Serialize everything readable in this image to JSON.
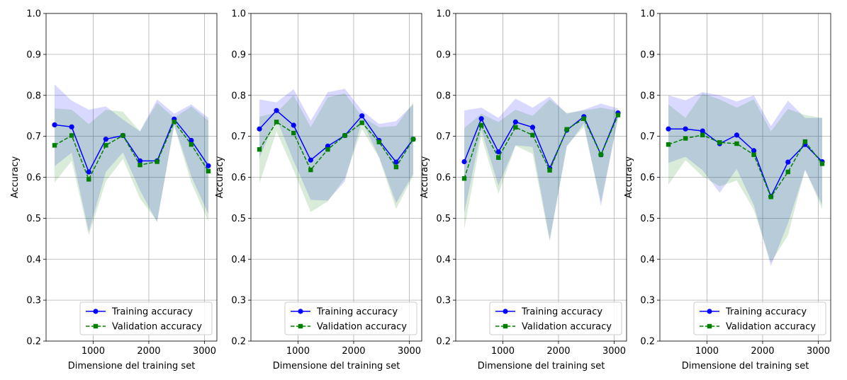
{
  "colors": {
    "train": "#0000ff",
    "val": "#008000",
    "train_band": "#0000ff",
    "val_band": "#008000",
    "grid": "#b0b0b0"
  },
  "chart_data": [
    {
      "type": "line",
      "xlabel": "Dimensione del training set",
      "ylabel": "Accuracy",
      "ylim": [
        0.2,
        1.0
      ],
      "xticks": [
        1000,
        2000,
        3000
      ],
      "yticks": [
        0.2,
        0.3,
        0.4,
        0.5,
        0.6,
        0.7,
        0.8,
        0.9,
        1.0
      ],
      "grid": true,
      "legend": "lower-right",
      "x": [
        307,
        614,
        921,
        1228,
        1535,
        1842,
        2149,
        2456,
        2763,
        3070
      ],
      "series": [
        {
          "name": "Training accuracy",
          "marker": "circle",
          "style": "solid",
          "values": [
            0.728,
            0.723,
            0.613,
            0.693,
            0.702,
            0.64,
            0.64,
            0.742,
            0.69,
            0.628
          ],
          "upper": [
            0.827,
            0.787,
            0.765,
            0.773,
            0.741,
            0.712,
            0.79,
            0.755,
            0.778,
            0.745
          ],
          "lower": [
            0.627,
            0.66,
            0.467,
            0.613,
            0.661,
            0.568,
            0.49,
            0.728,
            0.602,
            0.51
          ]
        },
        {
          "name": "Validation accuracy",
          "marker": "square",
          "style": "dashed",
          "values": [
            0.678,
            0.702,
            0.595,
            0.678,
            0.702,
            0.63,
            0.638,
            0.735,
            0.68,
            0.615
          ],
          "upper": [
            0.768,
            0.765,
            0.73,
            0.765,
            0.76,
            0.712,
            0.782,
            0.745,
            0.773,
            0.738
          ],
          "lower": [
            0.587,
            0.64,
            0.458,
            0.59,
            0.645,
            0.548,
            0.493,
            0.725,
            0.587,
            0.492
          ]
        }
      ]
    },
    {
      "type": "line",
      "xlabel": "Dimensione del training set",
      "ylabel": "Accuracy",
      "ylim": [
        0.2,
        1.0
      ],
      "xticks": [
        1000,
        2000,
        3000
      ],
      "yticks": [
        0.2,
        0.3,
        0.4,
        0.5,
        0.6,
        0.7,
        0.8,
        0.9,
        1.0
      ],
      "grid": true,
      "legend": "lower-right",
      "x": [
        307,
        614,
        921,
        1228,
        1535,
        1842,
        2149,
        2456,
        2763,
        3070
      ],
      "series": [
        {
          "name": "Training accuracy",
          "marker": "circle",
          "style": "solid",
          "values": [
            0.718,
            0.763,
            0.727,
            0.642,
            0.676,
            0.702,
            0.75,
            0.69,
            0.637,
            0.693
          ],
          "upper": [
            0.79,
            0.783,
            0.815,
            0.738,
            0.808,
            0.816,
            0.763,
            0.73,
            0.737,
            0.778
          ],
          "lower": [
            0.648,
            0.743,
            0.64,
            0.545,
            0.543,
            0.59,
            0.738,
            0.65,
            0.537,
            0.608
          ]
        },
        {
          "name": "Validation accuracy",
          "marker": "square",
          "style": "dashed",
          "values": [
            0.668,
            0.735,
            0.708,
            0.618,
            0.668,
            0.702,
            0.733,
            0.686,
            0.625,
            0.693
          ],
          "upper": [
            0.748,
            0.758,
            0.8,
            0.722,
            0.795,
            0.805,
            0.748,
            0.722,
            0.725,
            0.782
          ],
          "lower": [
            0.585,
            0.712,
            0.617,
            0.515,
            0.541,
            0.598,
            0.718,
            0.648,
            0.523,
            0.603
          ]
        }
      ]
    },
    {
      "type": "line",
      "xlabel": "Dimensione del training set",
      "ylabel": "Accuracy",
      "ylim": [
        0.2,
        1.0
      ],
      "xticks": [
        1000,
        2000,
        3000
      ],
      "yticks": [
        0.2,
        0.3,
        0.4,
        0.5,
        0.6,
        0.7,
        0.8,
        0.9,
        1.0
      ],
      "grid": true,
      "legend": "lower-right",
      "x": [
        307,
        614,
        921,
        1228,
        1535,
        1842,
        2149,
        2456,
        2763,
        3070
      ],
      "series": [
        {
          "name": "Training accuracy",
          "marker": "circle",
          "style": "solid",
          "values": [
            0.638,
            0.743,
            0.662,
            0.735,
            0.722,
            0.622,
            0.715,
            0.748,
            0.655,
            0.757
          ],
          "upper": [
            0.763,
            0.77,
            0.745,
            0.792,
            0.77,
            0.797,
            0.755,
            0.765,
            0.78,
            0.768
          ],
          "lower": [
            0.513,
            0.716,
            0.58,
            0.678,
            0.674,
            0.448,
            0.675,
            0.731,
            0.53,
            0.746
          ]
        },
        {
          "name": "Validation accuracy",
          "marker": "square",
          "style": "dashed",
          "values": [
            0.597,
            0.727,
            0.648,
            0.722,
            0.703,
            0.617,
            0.717,
            0.743,
            0.655,
            0.752
          ],
          "upper": [
            0.72,
            0.755,
            0.735,
            0.765,
            0.75,
            0.79,
            0.757,
            0.763,
            0.77,
            0.762
          ],
          "lower": [
            0.473,
            0.7,
            0.56,
            0.677,
            0.657,
            0.443,
            0.677,
            0.723,
            0.54,
            0.742
          ]
        }
      ]
    },
    {
      "type": "line",
      "xlabel": "Dimensione del training set",
      "ylabel": "Accuracy",
      "ylim": [
        0.2,
        1.0
      ],
      "xticks": [
        1000,
        2000,
        3000
      ],
      "yticks": [
        0.2,
        0.3,
        0.4,
        0.5,
        0.6,
        0.7,
        0.8,
        0.9,
        1.0
      ],
      "grid": true,
      "legend": "lower-right",
      "x": [
        307,
        614,
        921,
        1228,
        1535,
        1842,
        2149,
        2456,
        2763,
        3070
      ],
      "series": [
        {
          "name": "Training accuracy",
          "marker": "circle",
          "style": "solid",
          "values": [
            0.718,
            0.718,
            0.713,
            0.682,
            0.703,
            0.665,
            0.553,
            0.637,
            0.68,
            0.638
          ],
          "upper": [
            0.8,
            0.788,
            0.808,
            0.8,
            0.785,
            0.8,
            0.725,
            0.787,
            0.745,
            0.745
          ],
          "lower": [
            0.635,
            0.65,
            0.617,
            0.562,
            0.62,
            0.532,
            0.383,
            0.488,
            0.617,
            0.533
          ]
        },
        {
          "name": "Validation accuracy",
          "marker": "square",
          "style": "dashed",
          "values": [
            0.68,
            0.695,
            0.703,
            0.685,
            0.682,
            0.655,
            0.552,
            0.613,
            0.687,
            0.633
          ],
          "upper": [
            0.778,
            0.745,
            0.805,
            0.79,
            0.77,
            0.79,
            0.712,
            0.767,
            0.752,
            0.745
          ],
          "lower": [
            0.582,
            0.642,
            0.602,
            0.578,
            0.592,
            0.52,
            0.392,
            0.458,
            0.62,
            0.522
          ]
        }
      ]
    }
  ]
}
